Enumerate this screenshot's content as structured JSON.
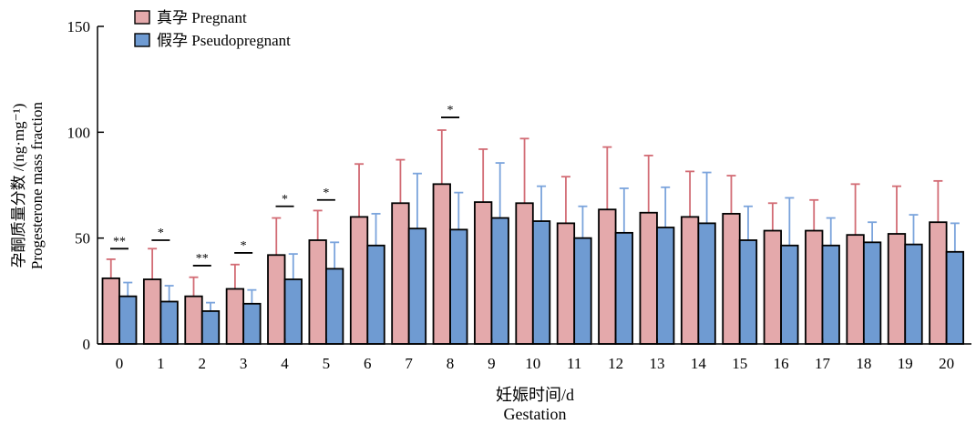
{
  "chart_data": {
    "type": "bar",
    "xlabel_cn": "妊娠时间/d",
    "xlabel_en": "Gestation",
    "ylabel_cn": "孕酮质量分数 /(ng·mg⁻¹)",
    "ylabel_en": "Progesterone mass fraction",
    "ylim": [
      0,
      150
    ],
    "yticks": [
      0,
      50,
      100,
      150
    ],
    "categories": [
      "0",
      "1",
      "2",
      "3",
      "4",
      "5",
      "6",
      "7",
      "8",
      "9",
      "10",
      "11",
      "12",
      "13",
      "14",
      "15",
      "16",
      "17",
      "18",
      "19",
      "20"
    ],
    "legend_position": "top-left",
    "series": [
      {
        "name": "真孕 Pregnant",
        "color": "#e4a9ab",
        "error_color": "#d26b74",
        "values": [
          31,
          30.5,
          22.5,
          26,
          42,
          49,
          60,
          66.5,
          75.5,
          67,
          66.5,
          57,
          63.5,
          62,
          60,
          61.5,
          53.5,
          53.5,
          51.5,
          52,
          57.5
        ],
        "errors": [
          9,
          14.5,
          9,
          11.5,
          17.5,
          14,
          25,
          20.5,
          25.5,
          25,
          30.5,
          22,
          29.5,
          27,
          21.5,
          18,
          13,
          14.5,
          24,
          22.5,
          19.5
        ]
      },
      {
        "name": "假孕 Pseudopregnant",
        "color": "#6f9bd2",
        "error_color": "#7ba4dc",
        "values": [
          22.5,
          20,
          15.5,
          19,
          30.5,
          35.5,
          46.5,
          54.5,
          54,
          59.5,
          58,
          50,
          52.5,
          55,
          57,
          49,
          46.5,
          46.5,
          48,
          47,
          43.5
        ],
        "errors": [
          6.5,
          7.5,
          4,
          6.5,
          12,
          12.5,
          15,
          26,
          17.5,
          26,
          16.5,
          15,
          21,
          19,
          24,
          16,
          22.5,
          13,
          9.5,
          14,
          13.5
        ]
      }
    ],
    "significance": [
      {
        "category": "0",
        "label": "**",
        "y": 45
      },
      {
        "category": "1",
        "label": "*",
        "y": 49
      },
      {
        "category": "2",
        "label": "**",
        "y": 37
      },
      {
        "category": "3",
        "label": "*",
        "y": 43
      },
      {
        "category": "4",
        "label": "*",
        "y": 65
      },
      {
        "category": "5",
        "label": "*",
        "y": 68
      },
      {
        "category": "8",
        "label": "*",
        "y": 107
      }
    ]
  }
}
